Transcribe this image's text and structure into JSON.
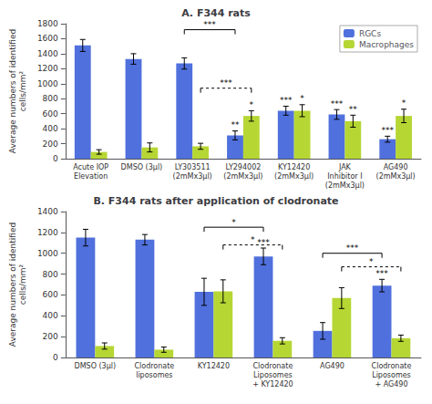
{
  "chart_data": [
    {
      "type": "bar",
      "title": "A. F344 rats",
      "categories": [
        "Acute IOP\nElevation",
        "DMSO (3μl)",
        "LY303511\n(2mMx3μl)",
        "LY294002\n(2mMx3μl)",
        "KY12420\n(2mMx3μl)",
        "JAK\nInhibitor I\n(2mMx3μl)",
        "AG490\n(2mMx3μl)"
      ],
      "series": [
        {
          "name": "RGCs",
          "values": [
            1510,
            1330,
            1270,
            310,
            640,
            590,
            260
          ],
          "errors": [
            80,
            70,
            75,
            60,
            60,
            65,
            40
          ],
          "significance": [
            null,
            null,
            null,
            "**",
            "***",
            "***",
            "***"
          ]
        },
        {
          "name": "Macrophages",
          "values": [
            90,
            150,
            165,
            570,
            640,
            500,
            570
          ],
          "errors": [
            30,
            60,
            40,
            70,
            80,
            80,
            90
          ],
          "significance": [
            null,
            null,
            null,
            "*",
            "*",
            "**",
            "*"
          ]
        }
      ],
      "ylabel": "Average numbers of identified\ncells/mm²",
      "ylim": [
        0,
        1800
      ],
      "yticks": [
        0,
        200,
        400,
        600,
        800,
        1000,
        1200,
        1400,
        1600,
        1800
      ],
      "grid": false,
      "legend": "upper right",
      "brackets": [
        {
          "series": "RGCs",
          "from": "LY303511\n(2mMx3μl)",
          "to": "LY294002\n(2mMx3μl)",
          "y": 1720,
          "label": "***",
          "line_style": "solid"
        },
        {
          "series": "Macrophages",
          "from": "LY303511\n(2mMx3μl)",
          "to": "LY294002\n(2mMx3μl)",
          "y": 940,
          "label": "***",
          "line_style": "dotted"
        }
      ]
    },
    {
      "type": "bar",
      "title": "B. F344 rats after application of clodronate",
      "categories": [
        "DMSO (3μl)",
        "Clodronate\nliposomes",
        "KY12420",
        "Clodronate\nLiposomes\n+ KY12420",
        "AG490",
        "Clodronate\nLiposomes\n+ AG490"
      ],
      "series": [
        {
          "name": "RGCs",
          "values": [
            1150,
            1130,
            630,
            970,
            255,
            690
          ],
          "errors": [
            80,
            50,
            130,
            80,
            80,
            60
          ],
          "significance": [
            null,
            null,
            null,
            "***",
            null,
            "***"
          ]
        },
        {
          "name": "Macrophages",
          "values": [
            110,
            75,
            635,
            160,
            570,
            185
          ],
          "errors": [
            30,
            25,
            110,
            30,
            100,
            30
          ]
        }
      ],
      "ylabel": "Average numbers of identified\ncells/mm²",
      "ylim": [
        0,
        1400
      ],
      "yticks": [
        0,
        200,
        400,
        600,
        800,
        1000,
        1200,
        1400
      ],
      "grid": false,
      "brackets": [
        {
          "series": "RGCs",
          "from": "KY12420",
          "to": "Clodronate\nLiposomes\n+ KY12420",
          "y": 1250,
          "label": "*",
          "line_style": "solid"
        },
        {
          "series": "Macrophages",
          "from": "KY12420",
          "to": "Clodronate\nLiposomes\n+ KY12420",
          "y": 1080,
          "label": "*",
          "line_style": "dotted"
        },
        {
          "series": "RGCs",
          "from": "AG490",
          "to": "Clodronate\nLiposomes\n+ AG490",
          "y": 1000,
          "label": "***",
          "line_style": "solid"
        },
        {
          "series": "Macrophages",
          "from": "AG490",
          "to": "Clodronate\nLiposomes\n+ AG490",
          "y": 870,
          "label": "*",
          "line_style": "dotted"
        }
      ]
    }
  ]
}
